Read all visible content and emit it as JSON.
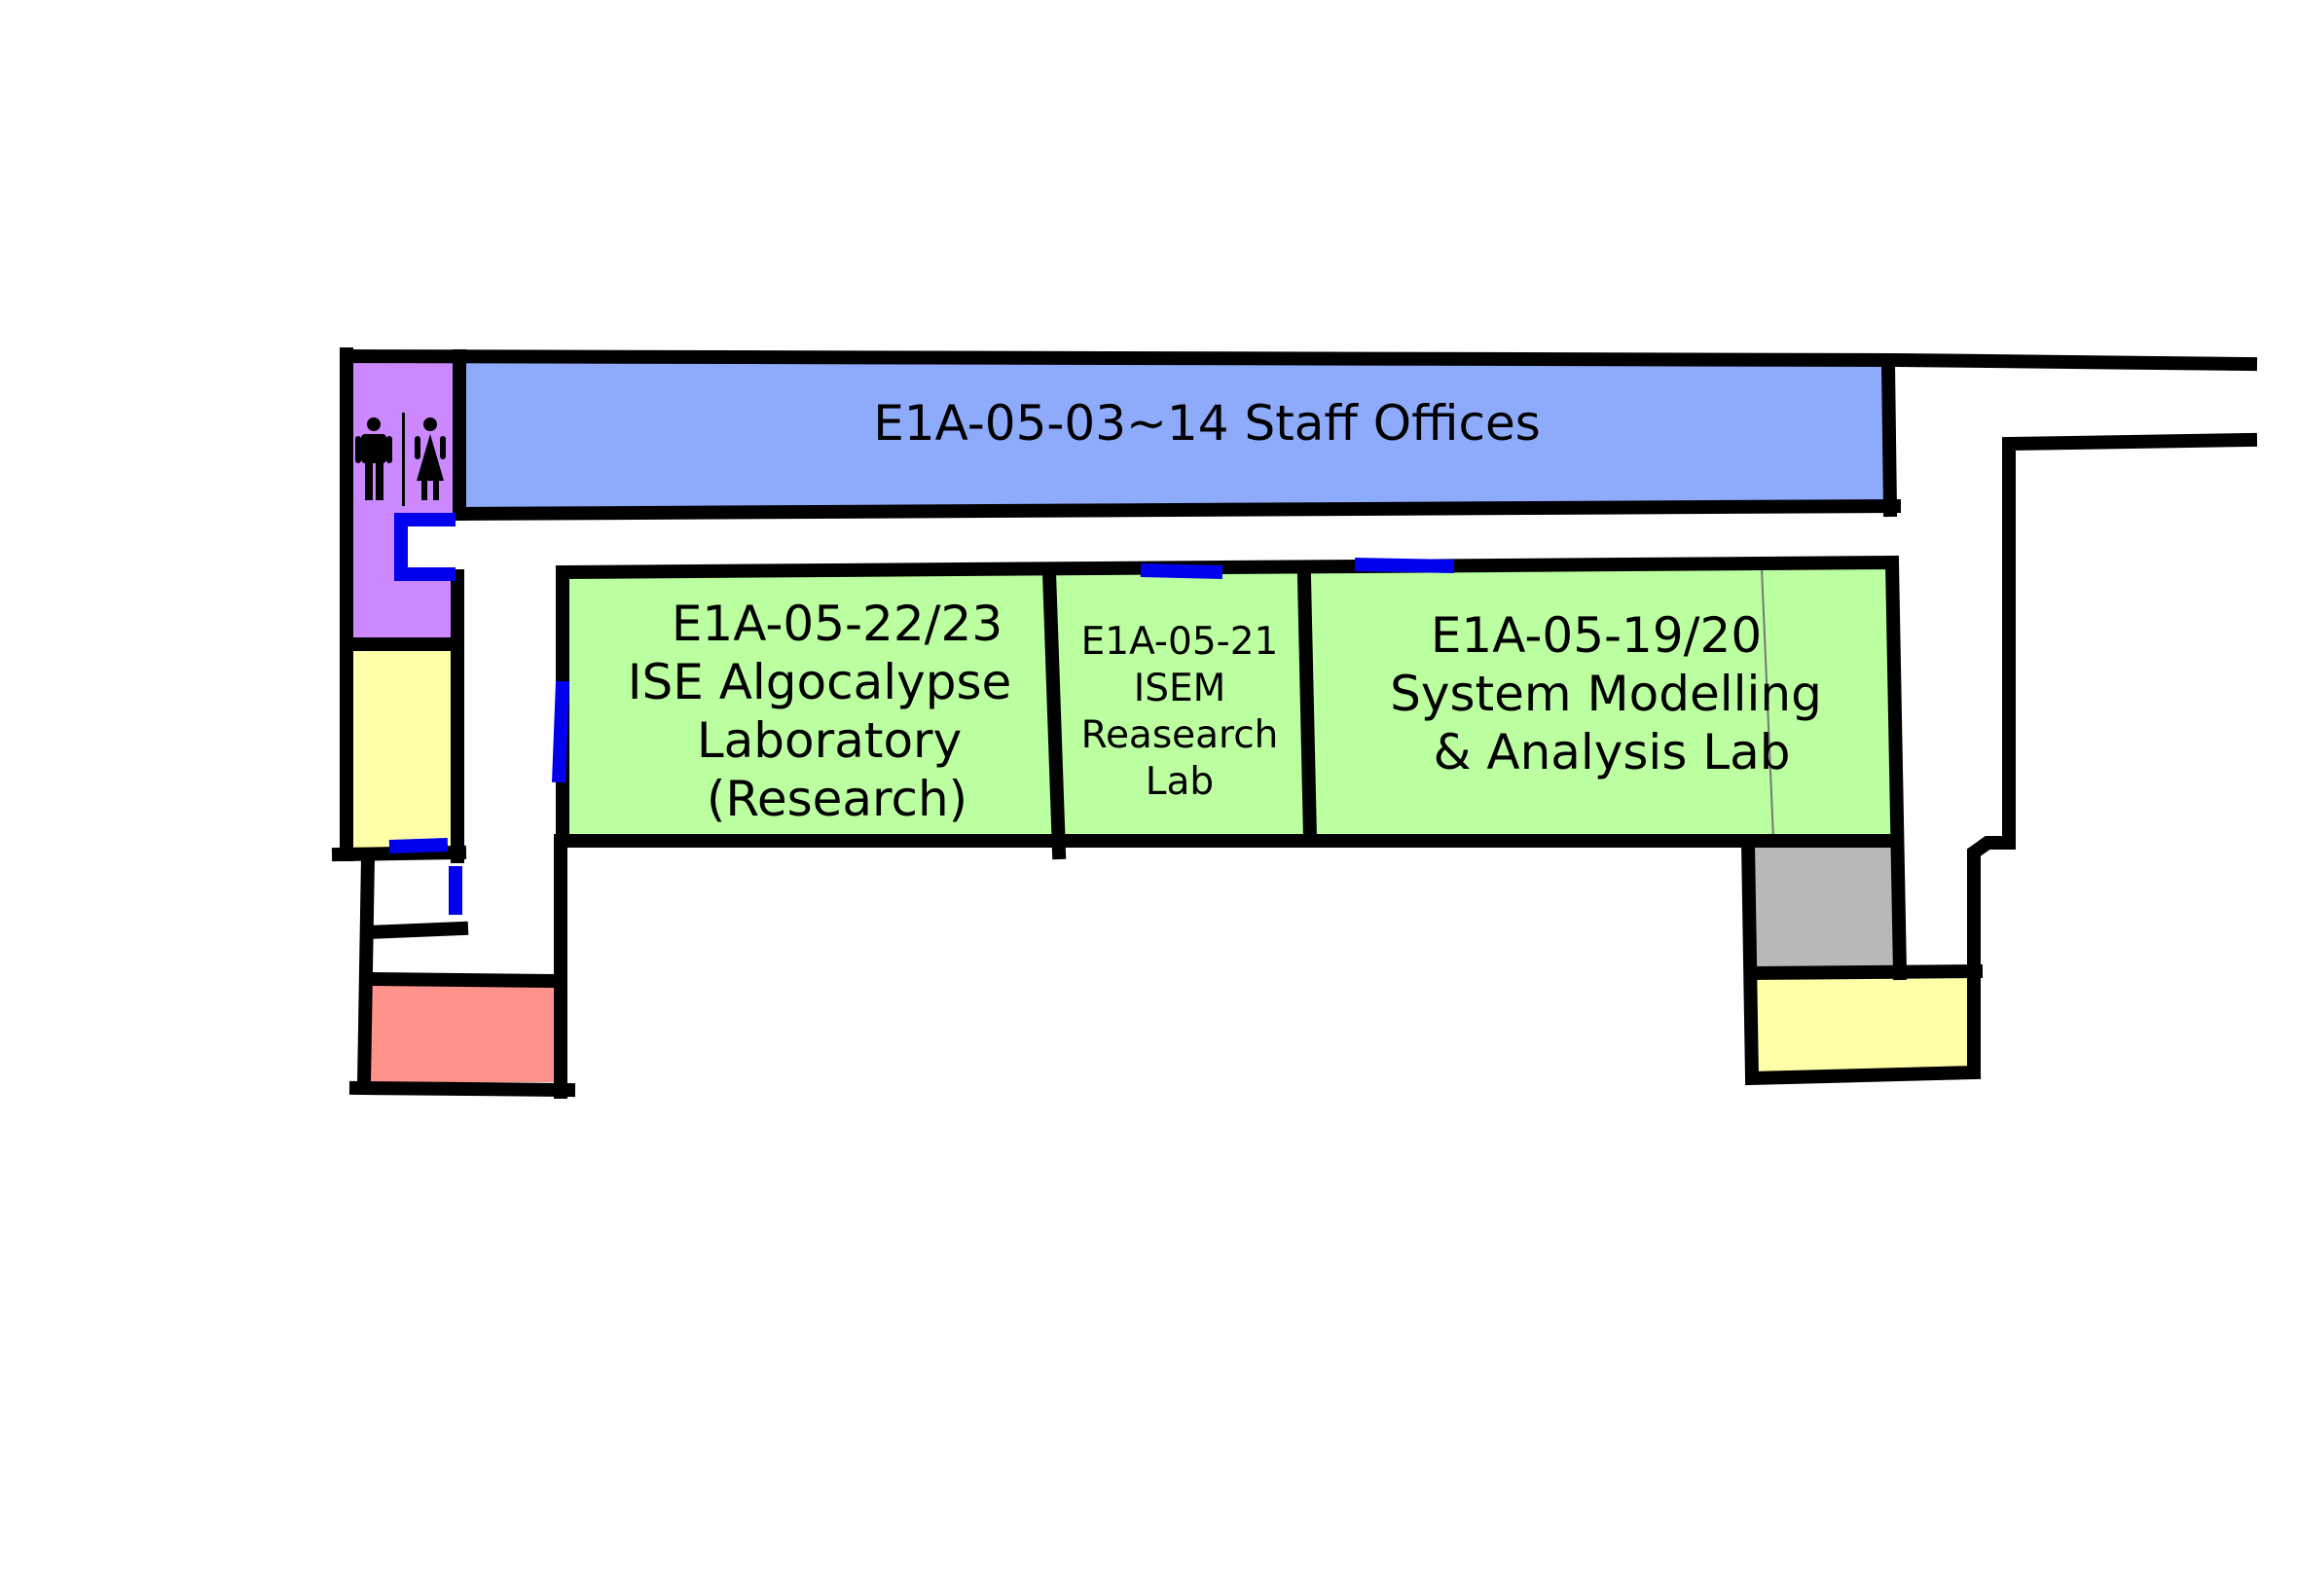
{
  "rooms": {
    "staff_offices": {
      "line1": "E1A-05-03~14 Staff Offices",
      "color": "#8eabfb"
    },
    "algocalypse_lab": {
      "line1": "E1A-05-22/23",
      "line2": "ISE Algocalypse",
      "line3": "Laboratory",
      "line4": "(Research)",
      "color": "#bbffa0"
    },
    "isem_lab": {
      "line1": "E1A-05-21",
      "line2": "ISEM",
      "line3": "Reasearch",
      "line4": "Lab",
      "color": "#bbffa0"
    },
    "system_modelling_lab": {
      "line1": "E1A-05-19/20",
      "line2": "System Modelling",
      "line3": "& Analysis Lab",
      "color": "#bbffa0"
    },
    "toilets": {
      "icon": "restroom-icon",
      "color": "#cc88ff"
    },
    "utility_left": {
      "color": "#ffffa8"
    },
    "utility_right": {
      "color": "#ffffa8"
    },
    "red_room": {
      "color": "#ff928a"
    },
    "grey_room": {
      "color": "#b8b8b8"
    }
  },
  "colors": {
    "wall": "#000000",
    "door": "#0000ee"
  }
}
